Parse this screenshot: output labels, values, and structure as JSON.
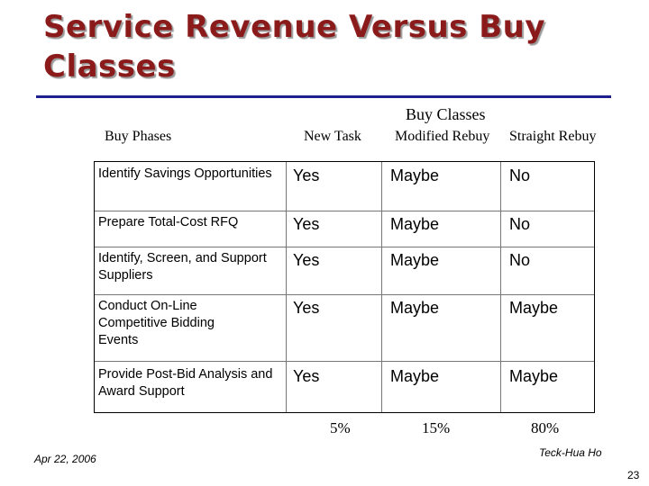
{
  "slide": {
    "title": "Service Revenue Versus Buy Classes"
  },
  "table": {
    "group_header": "Buy Classes",
    "columns": {
      "phases": "Buy Phases",
      "new_task": "New Task",
      "modified_rebuy": "Modified Rebuy",
      "straight_rebuy": "Straight Rebuy"
    },
    "rows": [
      {
        "phase": "Identify Savings Opportunities",
        "new_task": "Yes",
        "modified_rebuy": "Maybe",
        "straight_rebuy": "No"
      },
      {
        "phase": "Prepare Total-Cost RFQ",
        "new_task": "Yes",
        "modified_rebuy": "Maybe",
        "straight_rebuy": "No"
      },
      {
        "phase": "Identify, Screen, and Support Suppliers",
        "new_task": "Yes",
        "modified_rebuy": "Maybe",
        "straight_rebuy": "No"
      },
      {
        "phase": "Conduct On-Line Competitive Bidding Events",
        "new_task": "Yes",
        "modified_rebuy": "Maybe",
        "straight_rebuy": "Maybe"
      },
      {
        "phase": "Provide Post-Bid Analysis and Award Support",
        "new_task": "Yes",
        "modified_rebuy": "Maybe",
        "straight_rebuy": "Maybe"
      }
    ],
    "percentages": {
      "new_task": "5%",
      "modified_rebuy": "15%",
      "straight_rebuy": "80%"
    }
  },
  "footer": {
    "date": "Apr 22, 2006",
    "author": "Teck-Hua Ho",
    "page_number": "23"
  }
}
